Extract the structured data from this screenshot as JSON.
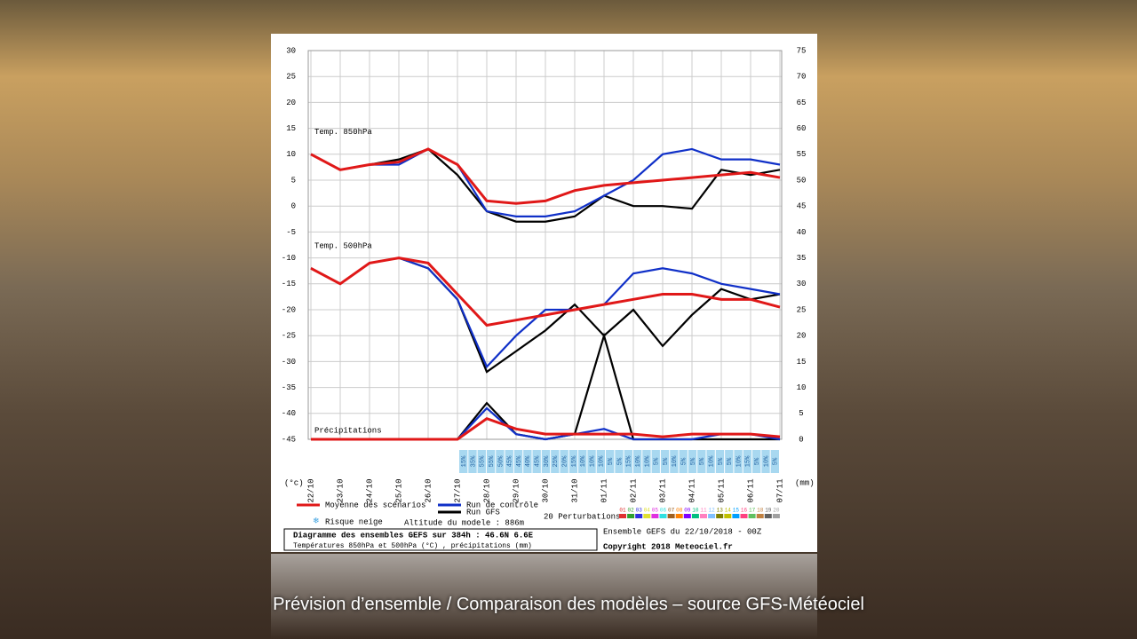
{
  "caption": "Prévision d’ensemble / Comparaison des modèles – source GFS-Météociel",
  "chart_data": {
    "type": "line",
    "title": "Diagramme des ensembles GEFS sur 384h : 46.6N 6.6E",
    "subtitle": "Températures 850hPa et 500hPa (°C) , précipitations (mm)",
    "run_info": "Ensemble GEFS du 22/10/2018 - 00Z",
    "copyright": "Copyright 2018 Meteociel.fr",
    "altitude": "Altitude du modele : 886m",
    "y_label": "(°c)",
    "y2_label": "(mm)",
    "categories": [
      "22/10",
      "23/10",
      "24/10",
      "25/10",
      "26/10",
      "27/10",
      "28/10",
      "29/10",
      "30/10",
      "31/10",
      "01/11",
      "02/11",
      "03/11",
      "04/11",
      "05/11",
      "06/11",
      "07/11"
    ],
    "ylim": [
      -45,
      30
    ],
    "yticks": [
      30,
      25,
      20,
      15,
      10,
      5,
      0,
      -5,
      -10,
      -15,
      -20,
      -25,
      -30,
      -35,
      -40,
      -45
    ],
    "y2lim": [
      0,
      75
    ],
    "y2ticks": [
      75,
      70,
      65,
      60,
      55,
      50,
      45,
      40,
      35,
      30,
      25,
      20,
      15,
      10,
      5,
      0
    ],
    "grid": true,
    "series": [
      {
        "name": "Moyenne des scénarios",
        "color": "#e01818"
      },
      {
        "name": "Run de contrôle",
        "color": "#1030c8"
      },
      {
        "name": "Run GFS",
        "color": "#000000"
      }
    ],
    "panels": [
      {
        "label": "Temp. 850hPa",
        "axis": "y",
        "series_values": [
          [
            10,
            7,
            8,
            8.5,
            11,
            8,
            1,
            0.5,
            1,
            3,
            4,
            4.5,
            5,
            5.5,
            6,
            6.5,
            5.5
          ],
          [
            10,
            7,
            8,
            8,
            11,
            8,
            -1,
            -2,
            -2,
            -1,
            2,
            5,
            10,
            11,
            9,
            9,
            8
          ],
          [
            10,
            7,
            8,
            9,
            11,
            6,
            -1,
            -3,
            -3,
            -2,
            2,
            0,
            0,
            -0.5,
            7,
            6,
            7
          ]
        ]
      },
      {
        "label": "Temp. 500hPa",
        "axis": "y",
        "series_values": [
          [
            -12,
            -15,
            -11,
            -10,
            -11,
            -17,
            -23,
            -22,
            -21,
            -20,
            -19,
            -18,
            -17,
            -17,
            -18,
            -18,
            -19.5
          ],
          [
            -12,
            -15,
            -11,
            -10,
            -12,
            -18,
            -31,
            -25,
            -20,
            -20,
            -19,
            -13,
            -12,
            -13,
            -15,
            -16,
            -17
          ],
          [
            -12,
            -15,
            -11,
            -10,
            -12,
            -18,
            -32,
            -28,
            -24,
            -19,
            -25,
            -20,
            -27,
            -21,
            -16,
            -18,
            -17
          ]
        ]
      },
      {
        "label": "Précipitations",
        "axis": "y2",
        "series_values": [
          [
            0,
            0,
            0,
            0,
            0,
            0,
            4,
            2,
            1,
            1,
            1,
            1,
            0.5,
            1,
            1,
            1,
            0.5
          ],
          [
            0,
            0,
            0,
            0,
            0,
            0,
            6,
            1,
            0,
            1,
            2,
            0,
            0,
            0,
            1,
            1,
            0
          ],
          [
            0,
            0,
            0,
            0,
            0,
            0,
            7,
            1,
            0,
            1,
            20,
            0,
            0,
            0,
            0,
            0,
            0
          ]
        ]
      }
    ],
    "snow_label": "Risque neige",
    "snow_risk": [
      "15%",
      "35%",
      "55%",
      "55%",
      "50%",
      "45%",
      "45%",
      "40%",
      "45%",
      "30%",
      "25%",
      "20%",
      "15%",
      "10%",
      "10%",
      "10%",
      "5%",
      "5%",
      "15%",
      "10%",
      "10%",
      "5%",
      "5%",
      "10%",
      "5%",
      "5%",
      "5%",
      "10%",
      "5%",
      "5%",
      "10%",
      "15%",
      "5%",
      "10%",
      "5%"
    ],
    "perturbations_label": "20 Perturbations",
    "perturbations": [
      {
        "name": "01",
        "color": "#e03030"
      },
      {
        "name": "02",
        "color": "#30a030"
      },
      {
        "name": "03",
        "color": "#3030e0"
      },
      {
        "name": "04",
        "color": "#e0e030"
      },
      {
        "name": "05",
        "color": "#e030e0"
      },
      {
        "name": "06",
        "color": "#30e0e0"
      },
      {
        "name": "07",
        "color": "#a06020"
      },
      {
        "name": "08",
        "color": "#ff8000"
      },
      {
        "name": "09",
        "color": "#8000ff"
      },
      {
        "name": "10",
        "color": "#00c080"
      },
      {
        "name": "11",
        "color": "#ff80c0"
      },
      {
        "name": "12",
        "color": "#80c0ff"
      },
      {
        "name": "13",
        "color": "#808000"
      },
      {
        "name": "14",
        "color": "#c0c000"
      },
      {
        "name": "15",
        "color": "#00a0ff"
      },
      {
        "name": "16",
        "color": "#ff4080"
      },
      {
        "name": "17",
        "color": "#60c060"
      },
      {
        "name": "18",
        "color": "#c08040"
      },
      {
        "name": "19",
        "color": "#606060"
      },
      {
        "name": "20",
        "color": "#a0a0a0"
      }
    ]
  }
}
